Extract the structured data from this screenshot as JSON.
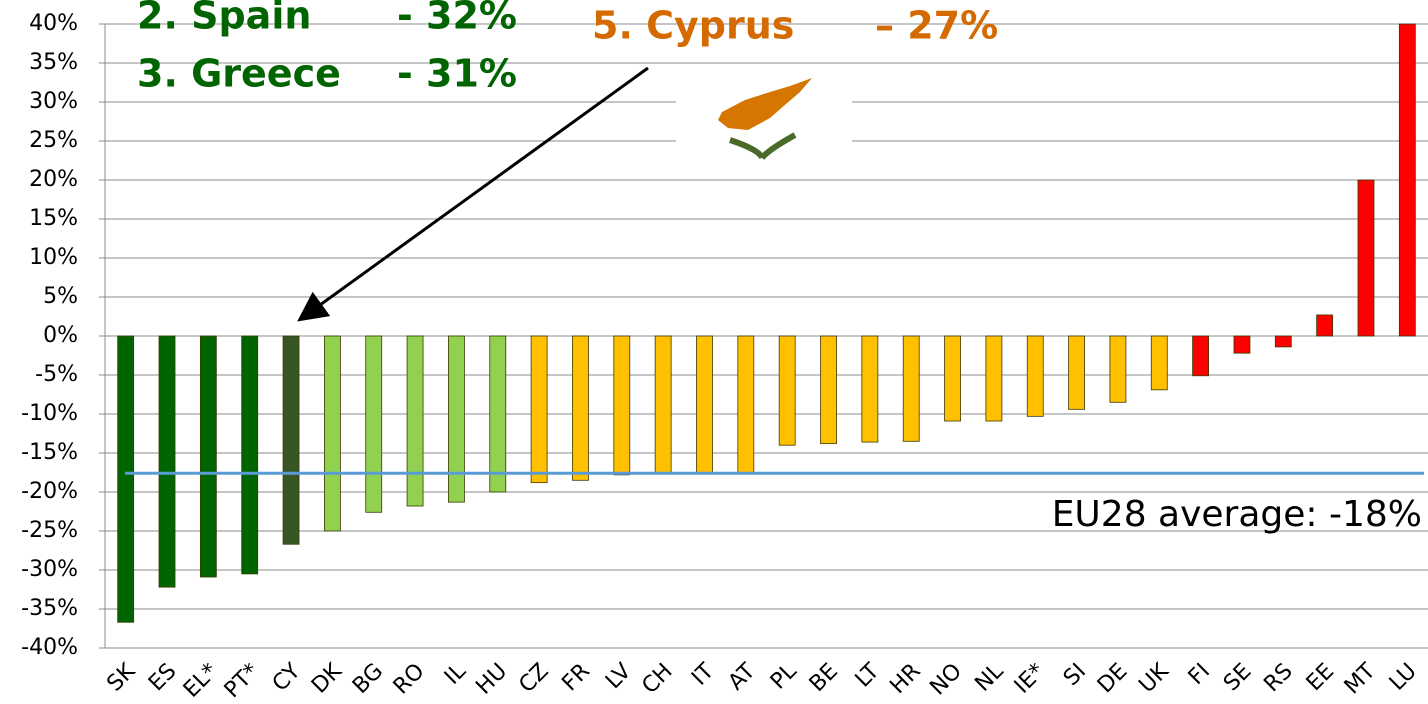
{
  "chart_data": {
    "type": "bar",
    "categories": [
      "SK",
      "ES",
      "EL*",
      "PT*",
      "CY",
      "DK",
      "BG",
      "RO",
      "IL",
      "HU",
      "CZ",
      "FR",
      "LV",
      "CH",
      "IT",
      "AT",
      "PL",
      "BE",
      "LT",
      "HR",
      "NO",
      "NL",
      "IE*",
      "SI",
      "DE",
      "UK",
      "FI",
      "SE",
      "RS",
      "EE",
      "MT",
      "LU"
    ],
    "values": [
      -36.7,
      -32.2,
      -30.9,
      -30.5,
      -26.7,
      -25.0,
      -22.6,
      -21.8,
      -21.3,
      -20.0,
      -18.8,
      -18.5,
      -17.8,
      -17.6,
      -17.6,
      -17.6,
      -14.0,
      -13.8,
      -13.6,
      -13.5,
      -10.9,
      -10.9,
      -10.3,
      -9.4,
      -8.5,
      -6.9,
      -5.1,
      -2.2,
      -1.4,
      2.7,
      20.0,
      40.0
    ],
    "colors": [
      "#006400",
      "#006400",
      "#006400",
      "#006400",
      "#375623",
      "#92d050",
      "#92d050",
      "#92d050",
      "#92d050",
      "#92d050",
      "#ffc000",
      "#ffc000",
      "#ffc000",
      "#ffc000",
      "#ffc000",
      "#ffc000",
      "#ffc000",
      "#ffc000",
      "#ffc000",
      "#ffc000",
      "#ffc000",
      "#ffc000",
      "#ffc000",
      "#ffc000",
      "#ffc000",
      "#ffc000",
      "#ff0000",
      "#ff0000",
      "#ff0000",
      "#ff0000",
      "#ff0000",
      "#ff0000"
    ],
    "ylim": [
      -40,
      40
    ],
    "yticks": [
      {
        "value": -40,
        "label": "-40%"
      },
      {
        "value": -35,
        "label": "-35%"
      },
      {
        "value": -30,
        "label": "-30%"
      },
      {
        "value": -25,
        "label": "-25%"
      },
      {
        "value": -20,
        "label": "-20%"
      },
      {
        "value": -15,
        "label": "-15%"
      },
      {
        "value": -10,
        "label": "-10%"
      },
      {
        "value": -5,
        "label": "-5%"
      },
      {
        "value": 0,
        "label": "0%"
      },
      {
        "value": 5,
        "label": "5%"
      },
      {
        "value": 10,
        "label": "10%"
      },
      {
        "value": 15,
        "label": "15%"
      },
      {
        "value": 20,
        "label": "20%"
      },
      {
        "value": 25,
        "label": "25%"
      },
      {
        "value": 30,
        "label": "30%"
      },
      {
        "value": 35,
        "label": "35%"
      },
      {
        "value": 40,
        "label": "40%"
      }
    ],
    "grid": true,
    "average": -17.6,
    "average_color": "#5b9bd5",
    "average_label": "EU28 average: -18%",
    "annotations": [
      [
        "2. Spain",
        "- 32%"
      ],
      [
        "3. Greece",
        "- 31%"
      ],
      [
        "5. Cyprus",
        "– 27%"
      ]
    ]
  }
}
